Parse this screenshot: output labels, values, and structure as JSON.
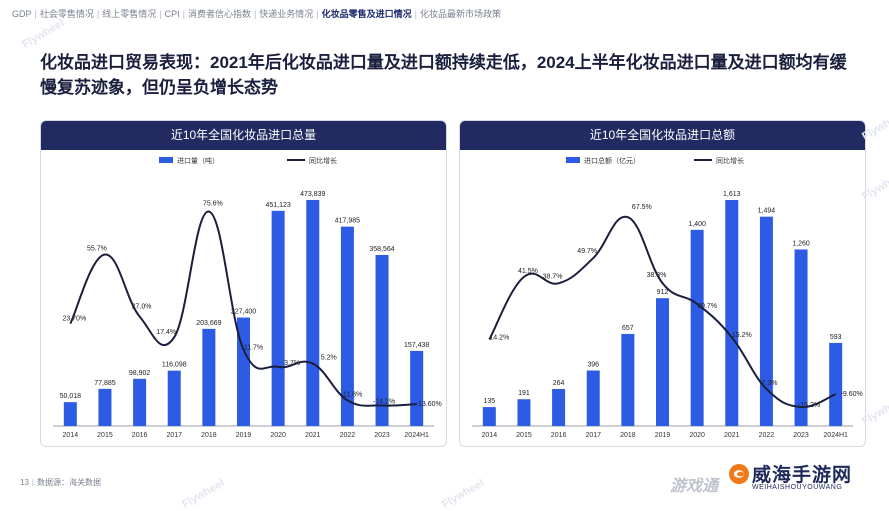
{
  "breadcrumb": [
    {
      "label": "GDP",
      "active": false
    },
    {
      "label": "社会零售情况",
      "active": false
    },
    {
      "label": "线上零售情况",
      "active": false
    },
    {
      "label": "CPI",
      "active": false
    },
    {
      "label": "消费者信心指数",
      "active": false
    },
    {
      "label": "快递业务情况",
      "active": false
    },
    {
      "label": "化妆品零售及进口情况",
      "active": true
    },
    {
      "label": "化妆品最新市场政策",
      "active": false
    }
  ],
  "title": "化妆品进口贸易表现：2021年后化妆品进口量及进口额持续走低，2024上半年化妆品进口量及进口额均有缓慢复苏迹象，但仍呈负增长态势",
  "footer": {
    "page": "13",
    "source": "数据源：海关数据"
  },
  "watermark": "Flywheel",
  "logo": {
    "main": "威海手游网",
    "sub": "WEIHAISHOUYOUWANG",
    "corner": "游戏通"
  },
  "colors": {
    "bar": "#2d5be3",
    "line": "#1a1f3d",
    "header": "#212b61"
  },
  "chart_data": [
    {
      "type": "bar",
      "title": "近10年全国化妆品进口总量",
      "categories": [
        "2014",
        "2015",
        "2016",
        "2017",
        "2018",
        "2019",
        "2020",
        "2021",
        "2022",
        "2023",
        "2024H1"
      ],
      "series": [
        {
          "name": "进口量（吨）",
          "type": "bar",
          "values": [
            50018,
            77885,
            98902,
            116098,
            203669,
            227400,
            451123,
            473839,
            417985,
            358564,
            157438
          ],
          "labels": [
            "50,018",
            "77,885",
            "98,902",
            "116,098",
            "203,669",
            "227,400",
            "451,123",
            "473,839",
            "417,985",
            "358,564",
            "157,438"
          ]
        },
        {
          "name": "同比增长",
          "type": "line",
          "values": [
            23.7,
            55.7,
            27.0,
            17.4,
            75.6,
            11.7,
            3.7,
            5.2,
            -11.8,
            -14.2,
            -13.6
          ],
          "labels": [
            "23.70%",
            "55.7%",
            "27.0%",
            "17.4%",
            "75.6%",
            "11.7%",
            "3.7%",
            "5.2%",
            "-11.8%",
            "-14.2%",
            "-13.60%"
          ]
        }
      ],
      "legend_position": "top-center",
      "grid": false
    },
    {
      "type": "bar",
      "title": "近10年全国化妆品进口总额",
      "categories": [
        "2014",
        "2015",
        "2016",
        "2017",
        "2018",
        "2019",
        "2020",
        "2021",
        "2022",
        "2023",
        "2024H1"
      ],
      "series": [
        {
          "name": "进口总额（亿元）",
          "type": "bar",
          "values": [
            135,
            191,
            264,
            396,
            657,
            912,
            1400,
            1613,
            1494,
            1260,
            593
          ],
          "labels": [
            "135",
            "191",
            "264",
            "396",
            "657",
            "912",
            "1,400",
            "1,613",
            "1,494",
            "1,260",
            "593"
          ]
        },
        {
          "name": "同比增长",
          "type": "line",
          "values": [
            14.2,
            41.5,
            38.7,
            49.7,
            67.5,
            38.8,
            29.7,
            15.2,
            -7.3,
            -15.2,
            -9.6
          ],
          "labels": [
            "14.2%",
            "41.5%",
            "38.7%",
            "49.7%",
            "67.5%",
            "38.8%",
            "29.7%",
            "15.2%",
            "-7.3%",
            "-15.2%",
            "-9.60%"
          ]
        }
      ],
      "legend_position": "top-center",
      "grid": false
    }
  ]
}
